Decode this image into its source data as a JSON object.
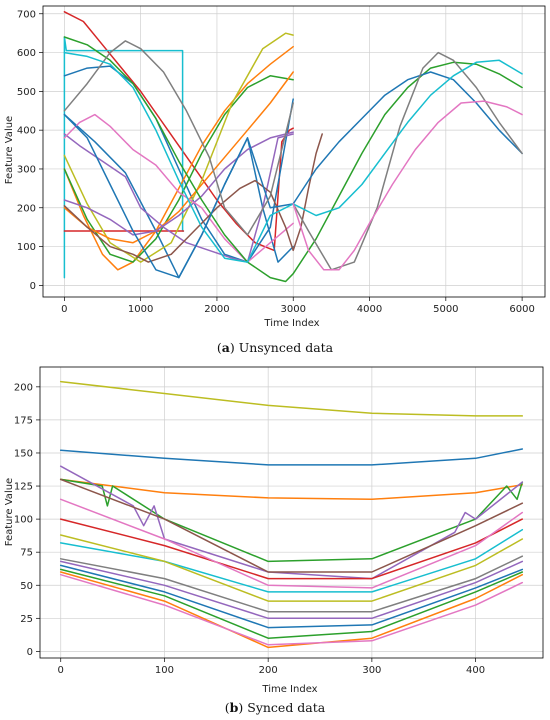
{
  "colors": [
    "#1f77b4",
    "#ff7f0e",
    "#2ca02c",
    "#d62728",
    "#9467bd",
    "#8c564b",
    "#e377c2",
    "#7f7f7f",
    "#bcbd22",
    "#17becf"
  ],
  "captions": {
    "a_tag": "a",
    "a_text": "Unsynced data",
    "b_tag": "b",
    "b_text": "Synced data"
  },
  "chart_data": [
    {
      "type": "line",
      "xlabel": "Time Index",
      "ylabel": "Feature Value",
      "xlim": [
        -280,
        6300
      ],
      "ylim": [
        -30,
        720
      ],
      "xticks": [
        0,
        1000,
        2000,
        3000,
        4000,
        5000,
        6000
      ],
      "yticks": [
        0,
        100,
        200,
        300,
        400,
        500,
        600,
        700
      ],
      "grid": true,
      "legend": "none",
      "series": [
        {
          "color": "#d62728",
          "x": [
            0,
            250,
            500,
            750,
            1000,
            1250,
            1500,
            1750,
            2000,
            2250,
            2500,
            2750,
            2850,
            2950,
            3000
          ],
          "y": [
            705,
            680,
            620,
            560,
            500,
            430,
            360,
            290,
            220,
            160,
            110,
            90,
            370,
            400,
            405
          ]
        },
        {
          "color": "#17becf",
          "x": [
            0,
            0,
            25,
            1550,
            1550,
            1560
          ],
          "y": [
            20,
            640,
            605,
            605,
            140,
            140
          ]
        },
        {
          "color": "#d62728",
          "x": [
            0,
            1560
          ],
          "y": [
            140,
            140
          ]
        },
        {
          "color": "#1f77b4",
          "x": [
            0,
            300,
            600,
            900,
            1200,
            1500,
            1800,
            2100,
            2400,
            2700,
            3000
          ],
          "y": [
            540,
            560,
            565,
            520,
            430,
            300,
            170,
            80,
            60,
            150,
            480
          ]
        },
        {
          "color": "#1f77b4",
          "x": [
            0,
            400,
            800,
            1200,
            1500,
            1800,
            2100,
            2400,
            2600,
            2800,
            3000
          ],
          "y": [
            440,
            370,
            290,
            140,
            20,
            130,
            260,
            380,
            200,
            60,
            100
          ]
        },
        {
          "color": "#ff7f0e",
          "x": [
            0,
            250,
            500,
            700,
            900,
            1200,
            1500,
            1800,
            2100,
            2400,
            2700,
            3000
          ],
          "y": [
            300,
            180,
            80,
            40,
            60,
            140,
            250,
            360,
            450,
            520,
            570,
            615
          ]
        },
        {
          "color": "#2ca02c",
          "x": [
            0,
            300,
            600,
            900,
            1200,
            1500,
            1800,
            2100,
            2400,
            2700,
            3000
          ],
          "y": [
            300,
            170,
            80,
            60,
            120,
            220,
            340,
            440,
            510,
            540,
            530
          ]
        },
        {
          "color": "#bcbd22",
          "x": [
            0,
            300,
            600,
            1000,
            1400,
            1800,
            2200,
            2600,
            2900,
            3000
          ],
          "y": [
            335,
            210,
            110,
            60,
            110,
            270,
            470,
            610,
            650,
            645
          ]
        },
        {
          "color": "#ff7f0e",
          "x": [
            0,
            300,
            600,
            900,
            1200,
            1500,
            1800,
            2100,
            2400,
            2700,
            3000
          ],
          "y": [
            200,
            150,
            120,
            110,
            140,
            190,
            260,
            330,
            400,
            470,
            550
          ]
        },
        {
          "color": "#9467bd",
          "x": [
            0,
            300,
            600,
            900,
            1200,
            1500,
            1800,
            2100,
            2400,
            2700,
            3000
          ],
          "y": [
            220,
            200,
            170,
            130,
            140,
            180,
            230,
            300,
            350,
            380,
            395
          ]
        },
        {
          "color": "#9467bd",
          "x": [
            0,
            200,
            500,
            800,
            1000,
            1300,
            1600,
            1900,
            2200,
            2400,
            2600,
            2800,
            3000
          ],
          "y": [
            390,
            360,
            320,
            280,
            200,
            150,
            110,
            90,
            70,
            60,
            200,
            380,
            390
          ]
        },
        {
          "color": "#e377c2",
          "x": [
            0,
            200,
            400,
            600,
            900,
            1200,
            1500,
            1800,
            2100,
            2400,
            2700,
            3000
          ],
          "y": [
            380,
            420,
            440,
            410,
            350,
            310,
            240,
            200,
            120,
            60,
            110,
            160
          ]
        },
        {
          "color": "#8c564b",
          "x": [
            0,
            300,
            600,
            900,
            1100,
            1400,
            1700,
            2000,
            2300,
            2500,
            2700,
            2900,
            3000,
            3100,
            3200,
            3300,
            3380
          ],
          "y": [
            205,
            150,
            100,
            80,
            60,
            80,
            140,
            200,
            250,
            270,
            240,
            150,
            90,
            150,
            250,
            340,
            390
          ]
        },
        {
          "color": "#2ca02c",
          "x": [
            0,
            300,
            600,
            900,
            1200,
            1500,
            1800,
            2100,
            2400,
            2700,
            2900,
            3000,
            3300,
            3600,
            3900,
            4200,
            4500,
            4800,
            5100,
            5400,
            5700,
            6000
          ],
          "y": [
            640,
            620,
            580,
            520,
            430,
            320,
            220,
            130,
            60,
            20,
            10,
            30,
            120,
            230,
            340,
            440,
            510,
            560,
            575,
            570,
            545,
            510
          ]
        },
        {
          "color": "#1f77b4",
          "x": [
            0,
            300,
            600,
            900,
            1200,
            1500,
            1800,
            2100,
            2400,
            2700,
            3000,
            3300,
            3600,
            3900,
            4200,
            4500,
            4800,
            5100,
            5400,
            5700,
            6000
          ],
          "y": [
            440,
            380,
            260,
            140,
            40,
            20,
            130,
            260,
            380,
            200,
            210,
            300,
            370,
            430,
            490,
            530,
            550,
            530,
            470,
            400,
            340
          ]
        },
        {
          "color": "#7f7f7f",
          "x": [
            0,
            300,
            600,
            800,
            1000,
            1300,
            1600,
            1900,
            2100,
            2400,
            2700,
            3000
          ],
          "y": [
            450,
            520,
            600,
            630,
            610,
            550,
            450,
            330,
            200,
            130,
            230,
            470
          ]
        },
        {
          "color": "#7f7f7f",
          "x": [
            3000,
            3200,
            3500,
            3800,
            4100,
            4400,
            4700,
            4900,
            5100,
            5400,
            5700,
            6000
          ],
          "y": [
            210,
            140,
            40,
            60,
            200,
            410,
            560,
            600,
            580,
            510,
            420,
            340
          ]
        },
        {
          "color": "#17becf",
          "x": [
            0,
            300,
            600,
            900,
            1200,
            1500,
            1800,
            2100,
            2400,
            2700,
            3000,
            3300,
            3600,
            3900,
            4200,
            4500,
            4800,
            5100,
            5400,
            5700,
            6000
          ],
          "y": [
            600,
            590,
            570,
            510,
            400,
            270,
            150,
            70,
            60,
            180,
            210,
            180,
            200,
            260,
            340,
            420,
            490,
            540,
            575,
            580,
            545
          ]
        },
        {
          "color": "#e377c2",
          "x": [
            3000,
            3200,
            3400,
            3600,
            3800,
            4000,
            4300,
            4600,
            4900,
            5200,
            5500,
            5800,
            6000
          ],
          "y": [
            210,
            90,
            40,
            40,
            90,
            160,
            260,
            350,
            420,
            470,
            475,
            460,
            440
          ]
        }
      ]
    },
    {
      "type": "line",
      "xlabel": "Time Index",
      "ylabel": "Feature Value",
      "xlim": [
        -20,
        465
      ],
      "ylim": [
        -5,
        215
      ],
      "xticks": [
        0,
        100,
        200,
        300,
        400
      ],
      "yticks": [
        0,
        25,
        50,
        75,
        100,
        125,
        150,
        175,
        200
      ],
      "grid": true,
      "legend": "none",
      "series": [
        {
          "color": "#bcbd22",
          "x": [
            0,
            100,
            200,
            300,
            400,
            445
          ],
          "y": [
            204,
            195,
            186,
            180,
            178,
            178
          ]
        },
        {
          "color": "#1f77b4",
          "x": [
            0,
            100,
            200,
            300,
            400,
            445
          ],
          "y": [
            152,
            146,
            141,
            141,
            146,
            153
          ]
        },
        {
          "color": "#ff7f0e",
          "x": [
            0,
            100,
            200,
            300,
            400,
            445
          ],
          "y": [
            130,
            120,
            116,
            115,
            120,
            126
          ]
        },
        {
          "color": "#2ca02c",
          "x": [
            0,
            40,
            45,
            50,
            100,
            200,
            300,
            400,
            430,
            440,
            445
          ],
          "y": [
            130,
            125,
            110,
            125,
            100,
            68,
            70,
            100,
            125,
            115,
            128
          ]
        },
        {
          "color": "#9467bd",
          "x": [
            0,
            70,
            80,
            90,
            100,
            200,
            300,
            380,
            390,
            400,
            445
          ],
          "y": [
            140,
            110,
            95,
            110,
            85,
            60,
            55,
            90,
            105,
            100,
            128
          ]
        },
        {
          "color": "#8c564b",
          "x": [
            0,
            100,
            200,
            300,
            400,
            445
          ],
          "y": [
            130,
            100,
            60,
            60,
            95,
            112
          ]
        },
        {
          "color": "#d62728",
          "x": [
            0,
            100,
            200,
            300,
            400,
            445
          ],
          "y": [
            100,
            80,
            55,
            55,
            82,
            100
          ]
        },
        {
          "color": "#e377c2",
          "x": [
            0,
            100,
            200,
            300,
            400,
            445
          ],
          "y": [
            115,
            85,
            50,
            48,
            80,
            105
          ]
        },
        {
          "color": "#17becf",
          "x": [
            0,
            100,
            200,
            300,
            400,
            445
          ],
          "y": [
            82,
            68,
            45,
            45,
            70,
            92
          ]
        },
        {
          "color": "#bcbd22",
          "x": [
            0,
            100,
            200,
            300,
            400,
            445
          ],
          "y": [
            88,
            68,
            38,
            38,
            65,
            85
          ]
        },
        {
          "color": "#7f7f7f",
          "x": [
            0,
            100,
            200,
            300,
            400,
            445
          ],
          "y": [
            70,
            55,
            30,
            30,
            55,
            72
          ]
        },
        {
          "color": "#9467bd",
          "x": [
            0,
            100,
            200,
            300,
            400,
            445
          ],
          "y": [
            68,
            50,
            25,
            25,
            52,
            68
          ]
        },
        {
          "color": "#1f77b4",
          "x": [
            0,
            100,
            200,
            300,
            400,
            445
          ],
          "y": [
            65,
            45,
            18,
            20,
            48,
            62
          ]
        },
        {
          "color": "#2ca02c",
          "x": [
            0,
            100,
            200,
            300,
            400,
            445
          ],
          "y": [
            62,
            42,
            10,
            15,
            45,
            60
          ]
        },
        {
          "color": "#ff7f0e",
          "x": [
            0,
            100,
            200,
            300,
            400,
            445
          ],
          "y": [
            60,
            38,
            3,
            10,
            40,
            58
          ]
        },
        {
          "color": "#e377c2",
          "x": [
            0,
            100,
            200,
            300,
            400,
            445
          ],
          "y": [
            58,
            35,
            5,
            8,
            35,
            52
          ]
        }
      ]
    }
  ]
}
